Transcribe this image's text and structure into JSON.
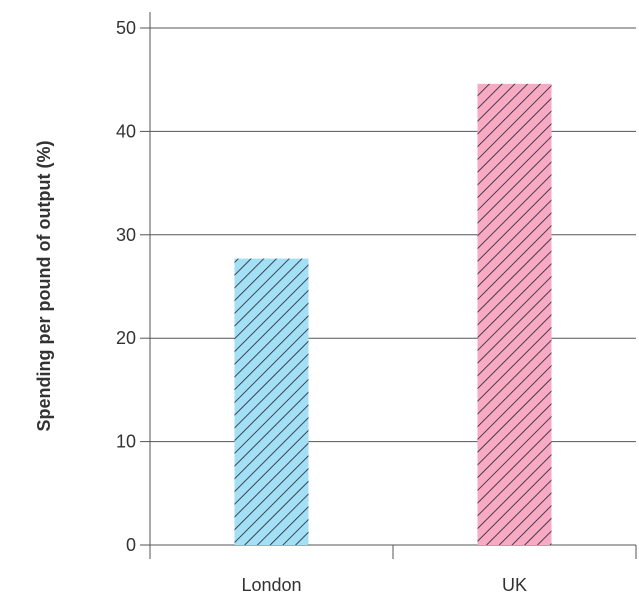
{
  "chart_data": {
    "type": "bar",
    "title": "",
    "xlabel": "",
    "ylabel": "Spending per pound of output (%)",
    "categories": [
      "London",
      "UK"
    ],
    "values": [
      27.7,
      44.6
    ],
    "ylim": [
      0,
      50
    ],
    "yticks": [
      0,
      10,
      20,
      30,
      40,
      50
    ],
    "grid": true,
    "legend": "none",
    "colors": [
      "#a3dff5",
      "#f7aac2"
    ],
    "hatch_color": "#1f1f2e"
  }
}
